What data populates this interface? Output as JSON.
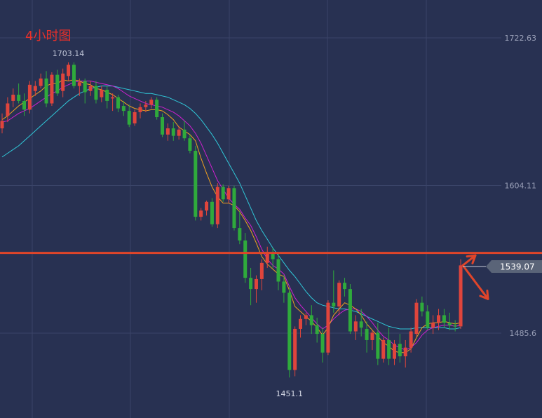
{
  "title": "4小时图",
  "colors": {
    "background": "#283152",
    "grid": "#3a4468",
    "up": "#e0453c",
    "down": "#2faa3c",
    "ma_fast": "#f0a020",
    "ma_mid": "#d020d0",
    "ma_slow": "#30c8d8",
    "hline": "#e0452a",
    "title": "#e8302a",
    "axis_text": "#9aa0b8",
    "price_tag_bg": "#5a6478"
  },
  "chart_data": {
    "type": "candlestick",
    "y_ticks": [
      "1722.63",
      "1604.11",
      "1485.6"
    ],
    "y_tick_values": [
      1722.63,
      1604.11,
      1485.6
    ],
    "ylim": [
      1445,
      1741
    ],
    "grid": true,
    "annotations": {
      "high_label": "1703.14",
      "low_label": "1451.1"
    },
    "current_price": "1539.07",
    "current_price_value": 1539.07,
    "horizontal_line": 1550,
    "arrows": [
      {
        "from": 1540,
        "to": 1548,
        "dx": 2.0
      },
      {
        "from": 1540,
        "to": 1513,
        "dx": 4.0
      }
    ],
    "candles": [
      [
        1650,
        1662,
        1646,
        1656
      ],
      [
        1660,
        1675,
        1655,
        1670
      ],
      [
        1672,
        1682,
        1667,
        1677
      ],
      [
        1677,
        1686,
        1670,
        1672
      ],
      [
        1672,
        1678,
        1660,
        1665
      ],
      [
        1665,
        1688,
        1662,
        1685
      ],
      [
        1680,
        1688,
        1676,
        1684
      ],
      [
        1684,
        1694,
        1682,
        1690
      ],
      [
        1690,
        1696,
        1667,
        1670
      ],
      [
        1670,
        1695,
        1668,
        1693
      ],
      [
        1693,
        1697,
        1676,
        1678
      ],
      [
        1680,
        1698,
        1675,
        1694
      ],
      [
        1692,
        1703,
        1688,
        1701
      ],
      [
        1701,
        1703,
        1682,
        1684
      ],
      [
        1684,
        1690,
        1676,
        1687
      ],
      [
        1688,
        1690,
        1670,
        1679
      ],
      [
        1680,
        1688,
        1676,
        1684
      ],
      [
        1684,
        1688,
        1670,
        1673
      ],
      [
        1675,
        1684,
        1671,
        1681
      ],
      [
        1681,
        1684,
        1666,
        1672
      ],
      [
        1674,
        1678,
        1664,
        1675
      ],
      [
        1675,
        1677,
        1663,
        1666
      ],
      [
        1668,
        1672,
        1660,
        1664
      ],
      [
        1664,
        1669,
        1651,
        1653
      ],
      [
        1654,
        1665,
        1652,
        1663
      ],
      [
        1663,
        1670,
        1658,
        1667
      ],
      [
        1667,
        1672,
        1663,
        1669
      ],
      [
        1669,
        1675,
        1666,
        1673
      ],
      [
        1673,
        1675,
        1657,
        1659
      ],
      [
        1659,
        1662,
        1643,
        1645
      ],
      [
        1645,
        1654,
        1640,
        1650
      ],
      [
        1650,
        1655,
        1640,
        1644
      ],
      [
        1644,
        1652,
        1641,
        1649
      ],
      [
        1649,
        1656,
        1640,
        1642
      ],
      [
        1642,
        1645,
        1630,
        1632
      ],
      [
        1632,
        1636,
        1576,
        1579
      ],
      [
        1579,
        1586,
        1576,
        1584
      ],
      [
        1584,
        1592,
        1580,
        1591
      ],
      [
        1591,
        1594,
        1571,
        1573
      ],
      [
        1573,
        1606,
        1570,
        1603
      ],
      [
        1603,
        1605,
        1591,
        1593
      ],
      [
        1593,
        1604,
        1590,
        1602
      ],
      [
        1602,
        1604,
        1568,
        1570
      ],
      [
        1570,
        1584,
        1557,
        1560
      ],
      [
        1560,
        1566,
        1526,
        1530
      ],
      [
        1530,
        1538,
        1508,
        1521
      ],
      [
        1521,
        1532,
        1510,
        1529
      ],
      [
        1529,
        1545,
        1520,
        1542
      ],
      [
        1542,
        1555,
        1538,
        1550
      ],
      [
        1550,
        1554,
        1538,
        1545
      ],
      [
        1545,
        1550,
        1520,
        1527
      ],
      [
        1527,
        1532,
        1510,
        1518
      ],
      [
        1518,
        1522,
        1450,
        1456
      ],
      [
        1456,
        1491,
        1451,
        1489
      ],
      [
        1489,
        1500,
        1482,
        1497
      ],
      [
        1497,
        1502,
        1492,
        1500
      ],
      [
        1500,
        1508,
        1485,
        1492
      ],
      [
        1492,
        1498,
        1478,
        1485
      ],
      [
        1485,
        1490,
        1462,
        1470
      ],
      [
        1470,
        1512,
        1468,
        1510
      ],
      [
        1510,
        1536,
        1502,
        1507
      ],
      [
        1507,
        1528,
        1500,
        1526
      ],
      [
        1526,
        1530,
        1515,
        1521
      ],
      [
        1521,
        1525,
        1485,
        1487
      ],
      [
        1487,
        1500,
        1480,
        1495
      ],
      [
        1495,
        1505,
        1483,
        1490
      ],
      [
        1489,
        1495,
        1470,
        1480
      ],
      [
        1480,
        1488,
        1472,
        1486
      ],
      [
        1486,
        1494,
        1460,
        1465
      ],
      [
        1465,
        1482,
        1462,
        1480
      ],
      [
        1480,
        1490,
        1460,
        1465
      ],
      [
        1465,
        1480,
        1460,
        1477
      ],
      [
        1477,
        1485,
        1462,
        1467
      ],
      [
        1467,
        1480,
        1458,
        1474
      ],
      [
        1474,
        1490,
        1470,
        1487
      ],
      [
        1485,
        1513,
        1483,
        1510
      ],
      [
        1510,
        1515,
        1499,
        1503
      ],
      [
        1503,
        1508,
        1488,
        1490
      ],
      [
        1490,
        1500,
        1485,
        1494
      ],
      [
        1494,
        1505,
        1488,
        1500
      ],
      [
        1500,
        1505,
        1490,
        1494
      ],
      [
        1494,
        1502,
        1488,
        1492
      ],
      [
        1492,
        1496,
        1487,
        1491
      ],
      [
        1491,
        1545,
        1489,
        1540
      ]
    ],
    "ma_fast": [
      1657,
      1660,
      1664,
      1668,
      1671,
      1674,
      1677,
      1680,
      1684,
      1686,
      1686,
      1689,
      1688,
      1689,
      1688,
      1686,
      1685,
      1682,
      1681,
      1679,
      1677,
      1674,
      1671,
      1668,
      1666,
      1665,
      1664,
      1665,
      1665,
      1664,
      1661,
      1657,
      1651,
      1648,
      1645,
      1640,
      1626,
      1614,
      1603,
      1595,
      1590,
      1590,
      1588,
      1583,
      1576,
      1568,
      1558,
      1547,
      1541,
      1537,
      1533,
      1531,
      1520,
      1507,
      1503,
      1499,
      1495,
      1490,
      1484,
      1490,
      1500,
      1505,
      1510,
      1508,
      1505,
      1500,
      1493,
      1488,
      1483,
      1478,
      1475,
      1471,
      1470,
      1470,
      1473,
      1482,
      1490,
      1493,
      1494,
      1494,
      1495,
      1494,
      1493,
      1494
    ],
    "ma_mid": [
      1655,
      1656,
      1659,
      1662,
      1664,
      1666,
      1669,
      1672,
      1675,
      1678,
      1680,
      1683,
      1685,
      1687,
      1688,
      1688,
      1688,
      1687,
      1686,
      1685,
      1684,
      1682,
      1679,
      1676,
      1674,
      1672,
      1670,
      1669,
      1668,
      1667,
      1665,
      1663,
      1660,
      1656,
      1652,
      1646,
      1638,
      1628,
      1618,
      1608,
      1601,
      1594,
      1589,
      1585,
      1578,
      1572,
      1563,
      1553,
      1545,
      1540,
      1537,
      1533,
      1523,
      1514,
      1508,
      1503,
      1498,
      1493,
      1489,
      1492,
      1497,
      1501,
      1504,
      1505,
      1505,
      1503,
      1499,
      1494,
      1488,
      1483,
      1480,
      1476,
      1474,
      1472,
      1474,
      1478,
      1484,
      1488,
      1490,
      1491,
      1492,
      1492,
      1491,
      1492
    ],
    "ma_slow": [
      1627,
      1630,
      1633,
      1636,
      1640,
      1644,
      1648,
      1652,
      1656,
      1660,
      1664,
      1668,
      1672,
      1675,
      1678,
      1680,
      1682,
      1683,
      1684,
      1684,
      1684,
      1683,
      1682,
      1681,
      1680,
      1679,
      1678,
      1678,
      1677,
      1676,
      1675,
      1673,
      1671,
      1669,
      1666,
      1662,
      1657,
      1651,
      1645,
      1638,
      1630,
      1622,
      1614,
      1606,
      1596,
      1586,
      1576,
      1568,
      1561,
      1554,
      1548,
      1542,
      1536,
      1531,
      1525,
      1519,
      1514,
      1510,
      1508,
      1507,
      1506,
      1505,
      1505,
      1504,
      1503,
      1501,
      1499,
      1497,
      1495,
      1493,
      1491,
      1490,
      1489,
      1489,
      1489,
      1490,
      1490,
      1490,
      1490,
      1490,
      1490,
      1489,
      1489,
      1490
    ]
  }
}
